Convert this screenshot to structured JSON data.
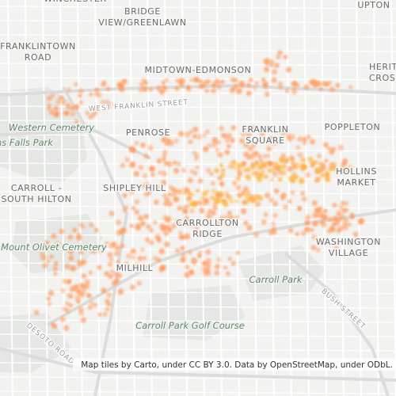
{
  "places": [
    {
      "lines": [
        "WINCHESTER"
      ]
    },
    {
      "lines": [
        "BRIDGE",
        "VIEW/GREENLAWN"
      ]
    },
    {
      "lines": [
        "UPTON"
      ]
    },
    {
      "lines": [
        "FRANKLINTOWN",
        "ROAD"
      ]
    },
    {
      "lines": [
        "MIDTOWN-EDMONSON"
      ]
    },
    {
      "lines": [
        "HERITAGE",
        "CROSSING"
      ]
    },
    {
      "lines": [
        "FRANKLIN",
        "SQUARE"
      ]
    },
    {
      "lines": [
        "POPPLETON"
      ]
    },
    {
      "lines": [
        "PENROSE"
      ]
    },
    {
      "lines": [
        "HOLLINS",
        "MARKET"
      ]
    },
    {
      "lines": [
        "CARROLL -",
        "SOUTH HILTON"
      ]
    },
    {
      "lines": [
        "SHIPLEY HILL"
      ]
    },
    {
      "lines": [
        "CARROLLTON",
        "RIDGE"
      ]
    },
    {
      "lines": [
        "WASHINGTON",
        "VILLAGE"
      ]
    },
    {
      "lines": [
        "MILHILL"
      ]
    }
  ],
  "parks": [
    "Western Cemetery",
    "Gwynns Falls Park",
    "Mount Olivet Cemetery",
    "Carroll Park",
    "Carroll Park Golf Course"
  ],
  "streets": [
    "WEST FRANKLIN STREET",
    "BUSH STREET",
    "DESOTO ROAD"
  ],
  "attribution": "Map tiles by Carto, under CC BY 3.0. Data by OpenStreetMap, under ODbL."
}
